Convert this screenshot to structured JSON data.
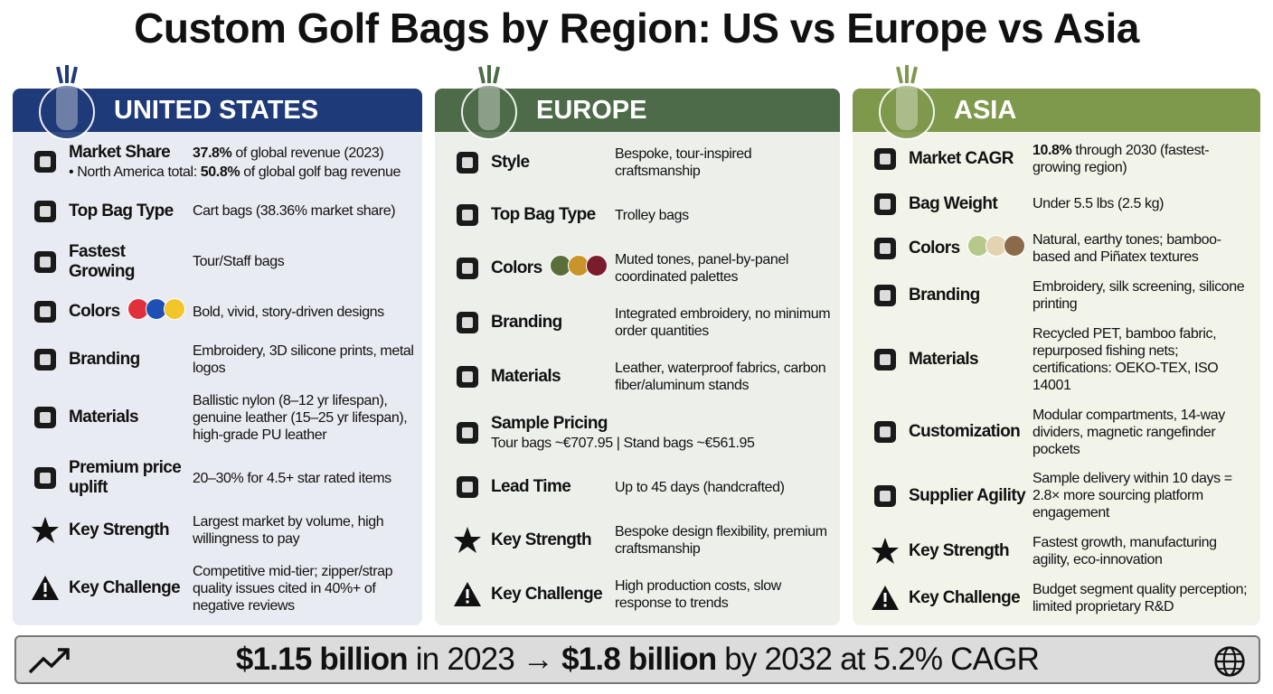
{
  "title": "Custom Golf Bags by Region: US vs Europe vs Asia",
  "panels": [
    {
      "name": "UNITED STATES",
      "color": "#1f3a78",
      "background": "#e8ebf2",
      "rows": [
        {
          "label": "Market Share",
          "value": [
            {
              "text": "37.8%",
              "bold": true
            },
            {
              "text": " of global revenue (2023)"
            }
          ],
          "note": [
            {
              "text": "• North America total: "
            },
            {
              "text": "50.8%",
              "bold": true
            },
            {
              "text": " of global golf bag revenue"
            }
          ]
        },
        {
          "label": "Top Bag Type",
          "value": [
            {
              "text": "Cart bags (38.36% market share)"
            }
          ]
        },
        {
          "label": "Fastest Growing",
          "value": [
            {
              "text": "Tour/Staff bags"
            }
          ]
        },
        {
          "label": "Colors",
          "swatches": [
            "#e0303c",
            "#1e4fb4",
            "#f2c52a"
          ],
          "value": [
            {
              "text": "Bold, vivid, story-driven designs"
            }
          ]
        },
        {
          "label": "Branding",
          "value": [
            {
              "text": "Embroidery, 3D silicone prints, metal logos"
            }
          ]
        },
        {
          "label": "Materials",
          "value": [
            {
              "text": "Ballistic nylon (8–12 yr lifespan), genuine leather (15–25 yr lifespan), high-grade PU leather"
            }
          ]
        },
        {
          "label": "Premium price uplift",
          "value": [
            {
              "text": "20–30% for 4.5+ star rated items"
            }
          ]
        },
        {
          "label": "Key Strength",
          "value": [
            {
              "text": "Largest market by volume, high willingness to pay"
            }
          ]
        },
        {
          "label": "Key Challenge",
          "value": [
            {
              "text": "Competitive mid-tier; zipper/strap quality issues cited in 40%+ of negative reviews"
            }
          ]
        }
      ]
    },
    {
      "name": "EUROPE",
      "color": "#4d6b48",
      "background": "#edf0ea",
      "rows": [
        {
          "label": "Style",
          "value": [
            {
              "text": "Bespoke, tour-inspired craftsmanship"
            }
          ]
        },
        {
          "label": "Top Bag Type",
          "value": [
            {
              "text": "Trolley bags"
            }
          ]
        },
        {
          "label": "Colors",
          "swatches": [
            "#5a6e3c",
            "#c9952a",
            "#7a1c2e"
          ],
          "value": [
            {
              "text": "Muted tones, panel-by-panel coordinated palettes"
            }
          ]
        },
        {
          "label": "Branding",
          "value": [
            {
              "text": "Integrated embroidery, no minimum order quantities"
            }
          ]
        },
        {
          "label": "Materials",
          "value": [
            {
              "text": "Leather, waterproof fabrics, carbon fiber/aluminum stands"
            }
          ]
        },
        {
          "label": "Sample Pricing",
          "note": [
            {
              "text": "Tour bags ~€707.95 | Stand bags ~€561.95"
            }
          ]
        },
        {
          "label": "Lead Time",
          "value": [
            {
              "text": "Up to 45 days (handcrafted)"
            }
          ]
        },
        {
          "label": "Key Strength",
          "value": [
            {
              "text": "Bespoke design flexibility, premium craftsmanship"
            }
          ]
        },
        {
          "label": "Key Challenge",
          "value": [
            {
              "text": "High production costs, slow response to trends"
            }
          ]
        }
      ]
    },
    {
      "name": "ASIA",
      "color": "#7e984c",
      "background": "#f2f4e9",
      "rows": [
        {
          "label": "Market CAGR",
          "value": [
            {
              "text": "10.8%",
              "bold": true
            },
            {
              "text": " through 2030 (fastest-growing region)"
            }
          ]
        },
        {
          "label": "Bag Weight",
          "value": [
            {
              "text": "Under 5.5 lbs (2.5 kg)"
            }
          ]
        },
        {
          "label": "Colors",
          "swatches": [
            "#b6c98a",
            "#e3d3b0",
            "#8a6a48"
          ],
          "value": [
            {
              "text": "Natural, earthy tones; bamboo-based and Piñatex textures"
            }
          ]
        },
        {
          "label": "Branding",
          "value": [
            {
              "text": "Embroidery, silk screening, silicone printing"
            }
          ]
        },
        {
          "label": "Materials",
          "value": [
            {
              "text": "Recycled PET, bamboo fabric, repurposed fishing nets; certifications: OEKO-TEX, ISO 14001"
            }
          ]
        },
        {
          "label": "Customization",
          "value": [
            {
              "text": "Modular compartments, 14-way dividers, magnetic rangefinder pockets"
            }
          ]
        },
        {
          "label": "Supplier Agility",
          "value": [
            {
              "text": "Sample delivery within 10 days = 2.8× more sourcing platform engagement"
            }
          ]
        },
        {
          "label": "Key Strength",
          "value": [
            {
              "text": "Fastest growth, manufacturing agility, eco-innovation"
            }
          ]
        },
        {
          "label": "Key Challenge",
          "value": [
            {
              "text": "Budget segment quality perception; limited proprietary R&D"
            }
          ]
        }
      ]
    }
  ],
  "footer": [
    {
      "text": "$1.15 billion",
      "bold": true
    },
    {
      "text": " in 2023 → "
    },
    {
      "text": "$1.8 billion",
      "bold": true
    },
    {
      "text": " by 2032 at 5.2% CAGR"
    }
  ]
}
